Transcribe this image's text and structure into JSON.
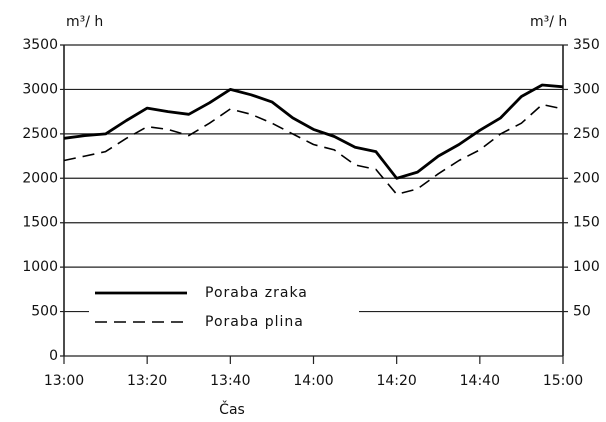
{
  "chart_data": {
    "type": "line",
    "x_label": "Čas",
    "y_label": "m³/ h",
    "y2_label": "m³/ h",
    "x": [
      "13:00",
      "13:05",
      "13:10",
      "13:15",
      "13:20",
      "13:25",
      "13:30",
      "13:35",
      "13:40",
      "13:45",
      "13:50",
      "13:55",
      "14:00",
      "14:05",
      "14:10",
      "14:15",
      "14:20",
      "14:25",
      "14:30",
      "14:35",
      "14:40",
      "14:45",
      "14:50",
      "14:55",
      "15:00"
    ],
    "xticks": [
      "13:00",
      "13:20",
      "13:40",
      "14:00",
      "14:20",
      "14:40",
      "15:00"
    ],
    "series": [
      {
        "name": "Poraba zraka",
        "color": "#000000",
        "line_style": "solid",
        "values": [
          2450,
          2480,
          2500,
          2650,
          2790,
          2750,
          2720,
          2850,
          3000,
          2940,
          2860,
          2680,
          2550,
          2470,
          2350,
          2300,
          2000,
          2070,
          2250,
          2380,
          2540,
          2680,
          2920,
          3050,
          3030
        ]
      },
      {
        "name": "Poraba plina",
        "color": "#000000",
        "line_style": "dashed",
        "axis": "y2",
        "values": [
          220,
          225,
          230,
          245,
          258,
          255,
          248,
          262,
          278,
          272,
          262,
          250,
          238,
          232,
          215,
          210,
          182,
          188,
          205,
          220,
          232,
          250,
          262,
          283,
          278
        ]
      }
    ],
    "ylim": [
      0,
      3500
    ],
    "yticks": [
      0,
      500,
      1000,
      1500,
      2000,
      2500,
      3000,
      3500
    ],
    "y2lim": [
      0,
      350
    ],
    "y2ticks": [
      50,
      100,
      150,
      200,
      250,
      300,
      350
    ],
    "grid": true,
    "legend": "lower left"
  }
}
